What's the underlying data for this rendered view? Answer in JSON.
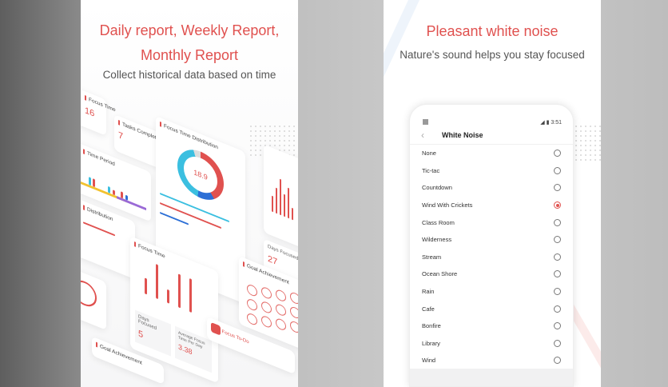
{
  "left_panel": {
    "title_line1": "Daily report, Weekly Report,",
    "title_line2": "Monthly Report",
    "subtitle": "Collect historical data based on time",
    "cards": {
      "focus_time_small": {
        "title": "Focus Time",
        "value": "16"
      },
      "tasks_completed": {
        "title": "Tasks Completed",
        "value": "7"
      },
      "time_period": {
        "title": "Time Period"
      },
      "distribution": {
        "title": "Distribution"
      },
      "focus_time_distribution": {
        "title": "Focus Time Distribution",
        "center_value": "18.9"
      },
      "days_focused_right": {
        "title": "Days Focused",
        "value": "27"
      },
      "focus_time": {
        "title": "Focus Time",
        "days_focused_label": "Days Focused",
        "days_focused_value": "5",
        "avg_label": "Average Focus Time Per Day",
        "avg_value": "3.38"
      },
      "goal_achievement": {
        "title": "Goal Achievement"
      },
      "goal_achievement_bottom": {
        "title": "Goal Achievement"
      },
      "app_promo": {
        "title": "Focus To-Do"
      }
    },
    "colors": {
      "accent": "#e0514f",
      "cyan": "#3bbfe0",
      "blue": "#2c6fd6",
      "yellow": "#f2c230",
      "purple": "#9a6ad6"
    }
  },
  "right_panel": {
    "title": "Pleasant white noise",
    "subtitle": "Nature's sound helps you stay focused",
    "phone": {
      "status_time": "3:51",
      "screen_title": "White Noise",
      "options": [
        "None",
        "Tic-tac",
        "Countdown",
        "Wind With Crickets",
        "Class Room",
        "Wilderness",
        "Stream",
        "Ocean Shore",
        "Rain",
        "Cafe",
        "Bonfire",
        "Library",
        "Wind"
      ],
      "selected": "Wind With Crickets"
    }
  }
}
